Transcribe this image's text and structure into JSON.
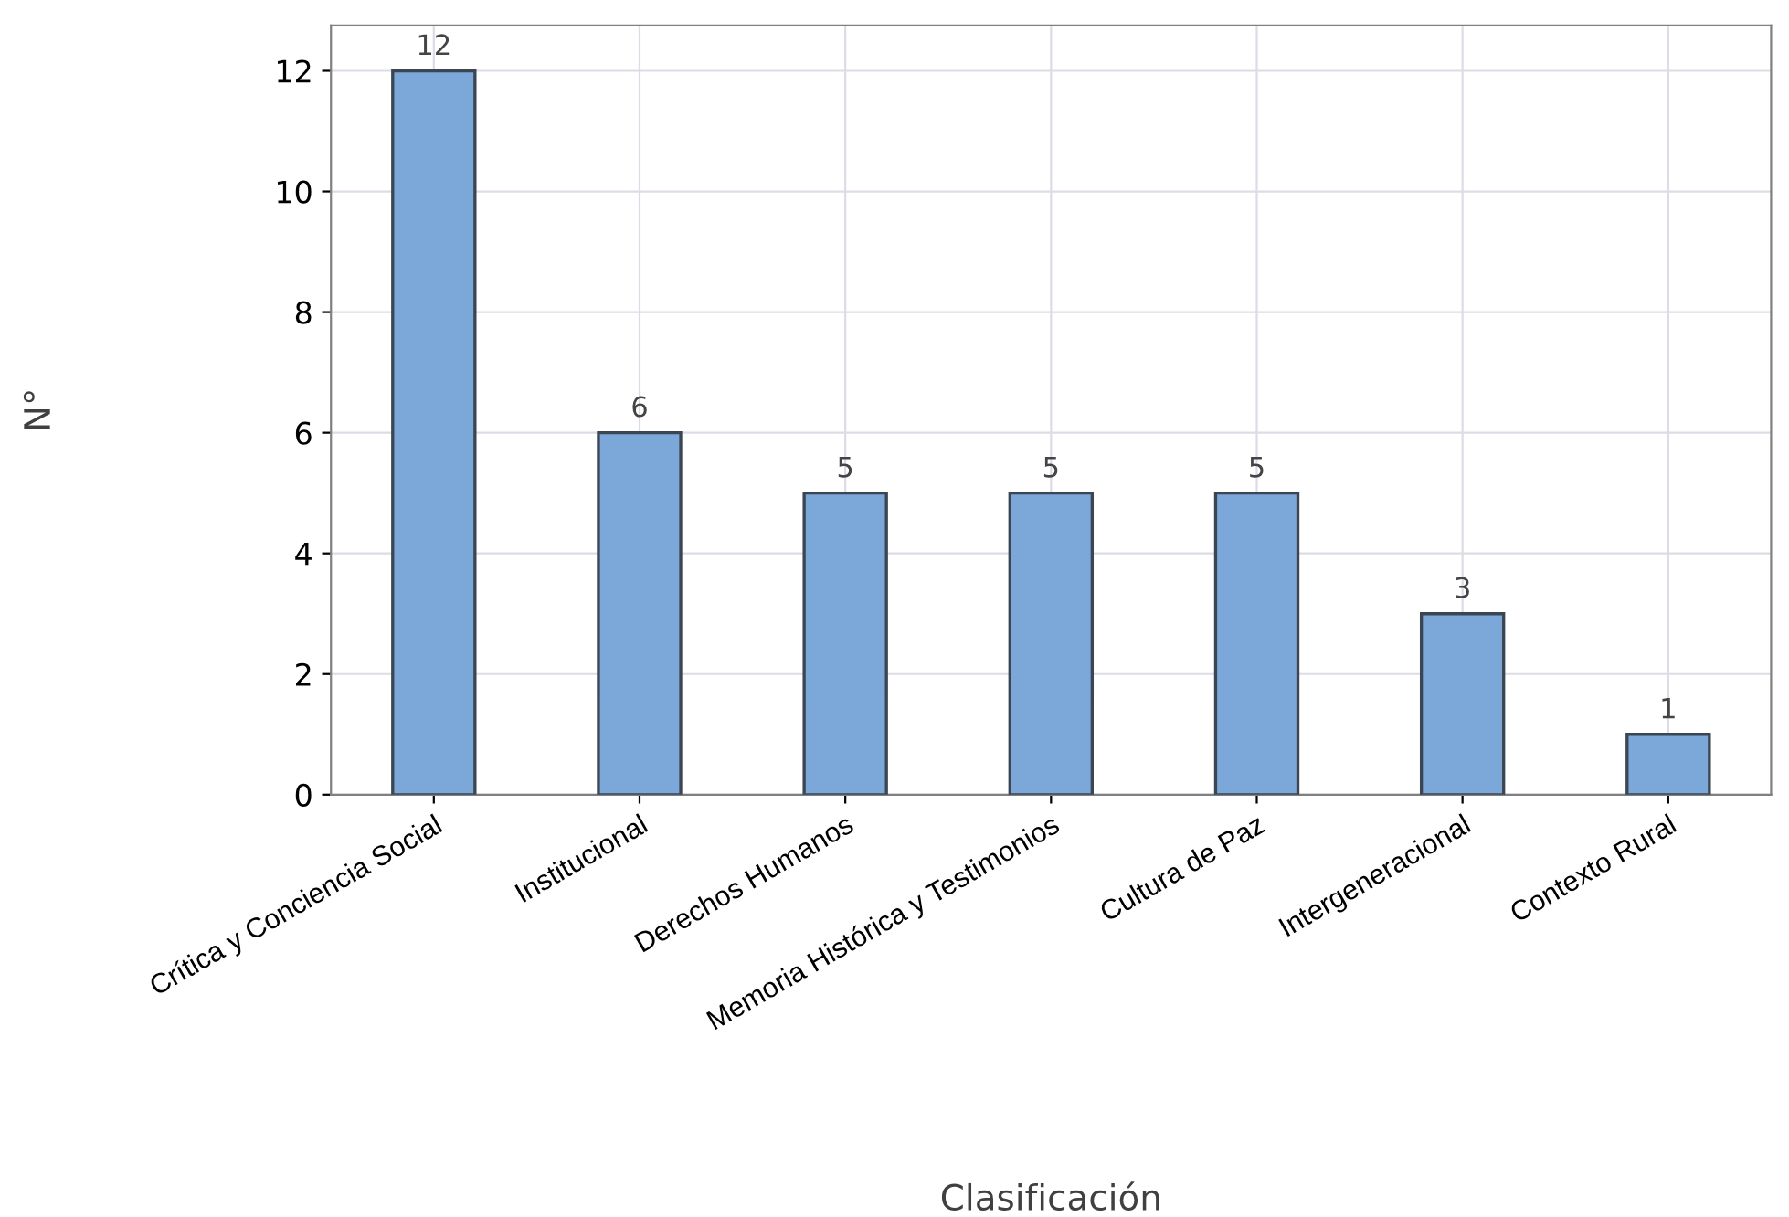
{
  "chart_data": {
    "type": "bar",
    "xlabel": "Clasificación",
    "ylabel": "N°",
    "categories": [
      "Crítica y Conciencia Social",
      "Institucional",
      "Derechos Humanos",
      "Memoria Histórica y Testimonios",
      "Cultura de Paz",
      "Intergeneracional",
      "Contexto Rural"
    ],
    "values": [
      12,
      6,
      5,
      5,
      5,
      3,
      1
    ],
    "color": "#7ba7d9",
    "ylim": [
      0,
      12.75
    ],
    "yticks": [
      0,
      2,
      4,
      6,
      8,
      10,
      12
    ],
    "grid": true,
    "data_labels": true
  }
}
